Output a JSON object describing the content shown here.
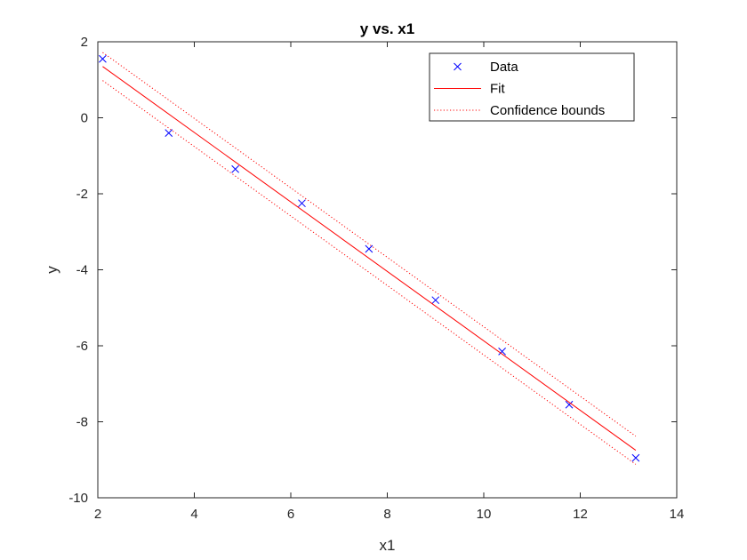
{
  "chart_data": {
    "type": "scatter",
    "title": "y vs. x1",
    "xlabel": "x1",
    "ylabel": "y",
    "xlim": [
      2,
      14
    ],
    "ylim": [
      -10,
      2
    ],
    "xticks": [
      2,
      4,
      6,
      8,
      10,
      12,
      14
    ],
    "yticks": [
      -10,
      -8,
      -6,
      -4,
      -2,
      0,
      2
    ],
    "grid": false,
    "legend_position": "top-right",
    "series": [
      {
        "name": "Data",
        "kind": "markers",
        "marker": "x",
        "color": "#0000ff",
        "x": [
          2.1,
          3.47,
          4.85,
          6.23,
          7.62,
          9.0,
          10.38,
          11.77,
          13.15
        ],
        "y": [
          1.55,
          -0.4,
          -1.35,
          -2.25,
          -3.45,
          -4.8,
          -6.15,
          -7.55,
          -8.95
        ]
      },
      {
        "name": "Fit",
        "kind": "line",
        "style": "solid",
        "color": "#ff0000",
        "x": [
          2.1,
          13.15
        ],
        "y": [
          1.35,
          -8.75
        ]
      },
      {
        "name": "Confidence bounds",
        "kind": "line",
        "style": "dotted",
        "color": "#ff0000",
        "x": [
          2.1,
          13.15
        ],
        "y": [
          1.72,
          -8.38
        ]
      },
      {
        "kind": "line",
        "style": "dotted",
        "color": "#ff0000",
        "x": [
          2.1,
          13.15
        ],
        "y": [
          0.98,
          -9.12
        ]
      }
    ]
  }
}
